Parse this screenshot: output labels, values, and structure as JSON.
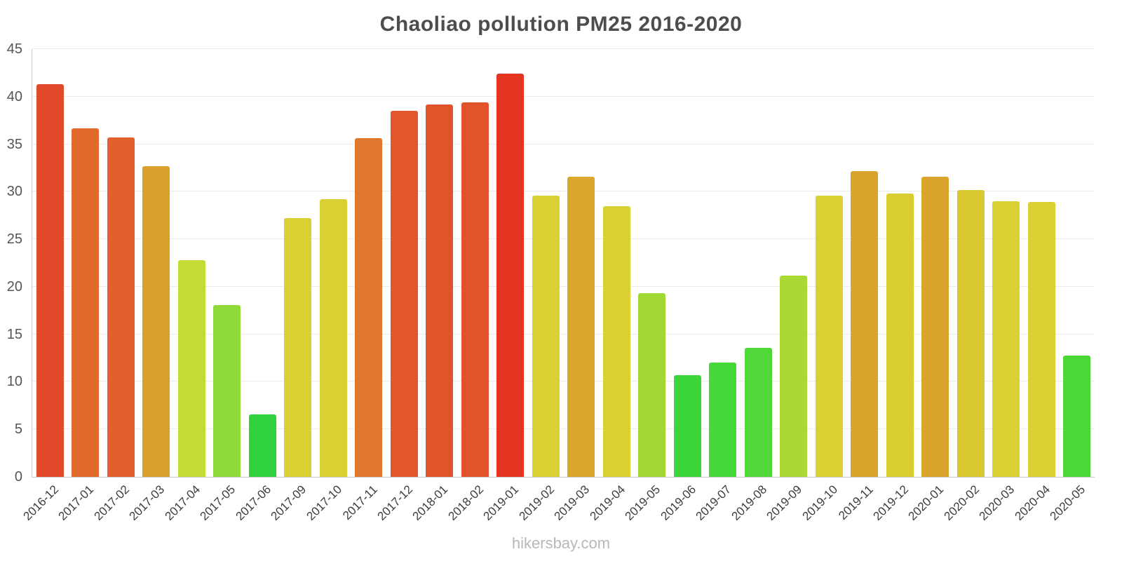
{
  "chart_data": {
    "type": "bar",
    "title": "Chaoliao pollution PM25 2016-2020",
    "xlabel": "",
    "ylabel": "",
    "ylim": [
      0,
      45
    ],
    "ytick_step": 5,
    "grid": true,
    "legend": "none",
    "categories": [
      "2016-12",
      "2017-01",
      "2017-02",
      "2017-03",
      "2017-04",
      "2017-05",
      "2017-06",
      "2017-09",
      "2017-10",
      "2017-11",
      "2017-12",
      "2018-01",
      "2018-02",
      "2019-01",
      "2019-02",
      "2019-03",
      "2019-04",
      "2019-05",
      "2019-06",
      "2019-07",
      "2019-08",
      "2019-09",
      "2019-10",
      "2019-11",
      "2019-12",
      "2020-01",
      "2020-02",
      "2020-03",
      "2020-04",
      "2020-05"
    ],
    "values": [
      41.3,
      36.7,
      35.7,
      32.7,
      22.8,
      18.1,
      6.6,
      27.2,
      29.2,
      35.6,
      38.5,
      39.2,
      39.4,
      42.4,
      29.6,
      31.6,
      28.5,
      19.3,
      10.7,
      12.0,
      13.6,
      21.2,
      29.6,
      32.2,
      29.8,
      31.6,
      30.2,
      29.0,
      28.9,
      12.8
    ],
    "colors": [
      "#e14b2c",
      "#e26b2b",
      "#e2602b",
      "#dba02c",
      "#c4da36",
      "#8fd93a",
      "#2ed33b",
      "#dad033",
      "#dad033",
      "#e1762d",
      "#e1572b",
      "#e1532a",
      "#e1532a",
      "#e5341f",
      "#dad033",
      "#dba82e",
      "#dad033",
      "#a2d835",
      "#3dd63a",
      "#46d739",
      "#50d738",
      "#abd934",
      "#dad033",
      "#dba42c",
      "#d9cd32",
      "#dba42c",
      "#d8c832",
      "#dad033",
      "#dad033",
      "#4ad738"
    ],
    "color_scale_note": "green=low, yellow=mid, orange/red=high"
  },
  "footer": {
    "text": "hikersbay.com"
  }
}
